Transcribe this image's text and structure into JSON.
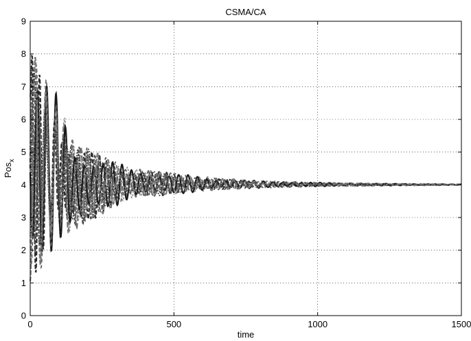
{
  "chart_data": {
    "type": "line",
    "title": "CSMA/CA",
    "xlabel": "time",
    "ylabel_main": "Pos",
    "ylabel_sub": "x",
    "xlim": [
      0,
      1500
    ],
    "ylim": [
      0,
      9
    ],
    "xticks": [
      0,
      500,
      1000,
      1500
    ],
    "yticks": [
      0,
      1,
      2,
      3,
      4,
      5,
      6,
      7,
      8,
      9
    ],
    "grid": true,
    "legend": "none",
    "converge_value": 4,
    "envelope": [
      {
        "t": 0,
        "upper": 8.0,
        "lower": 1.0
      },
      {
        "t": 20,
        "upper": 7.9,
        "lower": 1.2
      },
      {
        "t": 50,
        "upper": 7.3,
        "lower": 1.6
      },
      {
        "t": 90,
        "upper": 6.8,
        "lower": 2.2
      },
      {
        "t": 150,
        "upper": 5.3,
        "lower": 2.6
      },
      {
        "t": 250,
        "upper": 4.9,
        "lower": 3.1
      },
      {
        "t": 350,
        "upper": 4.5,
        "lower": 3.6
      },
      {
        "t": 500,
        "upper": 4.35,
        "lower": 3.7
      },
      {
        "t": 650,
        "upper": 4.2,
        "lower": 3.85
      },
      {
        "t": 800,
        "upper": 4.12,
        "lower": 3.9
      },
      {
        "t": 1000,
        "upper": 4.07,
        "lower": 3.95
      },
      {
        "t": 1200,
        "upper": 4.04,
        "lower": 3.97
      },
      {
        "t": 1500,
        "upper": 4.02,
        "lower": 3.99
      }
    ],
    "series_colors": [
      "#2b2b2b",
      "#4a4a4a",
      "#6b6b6b",
      "#8c8c8c",
      "#1a1a1a",
      "#5a5a5a",
      "#7a7a7a",
      "#3a3a3a"
    ]
  }
}
